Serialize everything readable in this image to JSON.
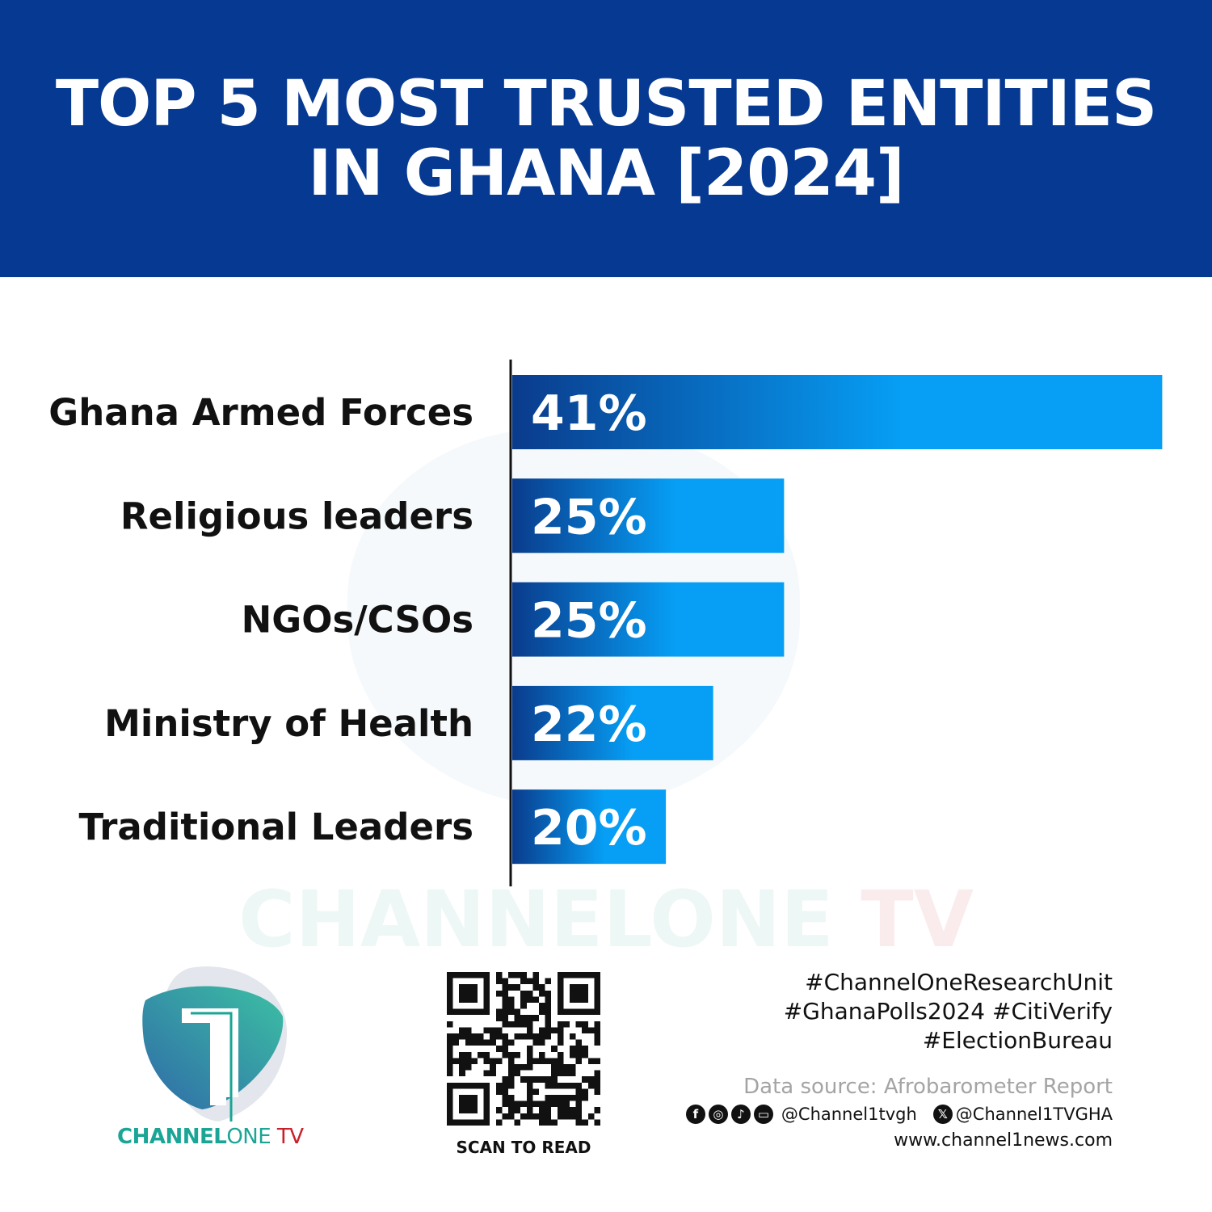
{
  "header": {
    "title_line1": "TOP 5 MOST TRUSTED ENTITIES",
    "title_line2": "IN GHANA [2024]"
  },
  "chart_data": {
    "type": "bar",
    "orientation": "horizontal",
    "title": "TOP 5 MOST TRUSTED ENTITIES IN GHANA [2024]",
    "categories": [
      "Ghana Armed Forces",
      "Religious leaders",
      "NGOs/CSOs",
      "Ministry of Health",
      "Traditional Leaders"
    ],
    "values": [
      41,
      25,
      25,
      22,
      20
    ],
    "value_labels": [
      "41%",
      "25%",
      "25%",
      "22%",
      "20%"
    ],
    "unit": "%",
    "grid": false,
    "bar_gradient": [
      "#0a3b8c",
      "#069ff5"
    ]
  },
  "watermark": {
    "part1": "CHANNELONE",
    "part2": " TV"
  },
  "logo": {
    "part1": "CHANNEL",
    "part2": "ONE",
    "part3": " TV"
  },
  "qr": {
    "caption": "SCAN TO READ"
  },
  "footer": {
    "tags": [
      "#ChannelOneResearchUnit",
      "#GhanaPolls2024 #CitiVerify",
      "#ElectionBureau"
    ],
    "source": "Data source: Afrobarometer Report",
    "social_icons": [
      "facebook-icon",
      "instagram-icon",
      "tiktok-icon",
      "youtube-icon",
      "x-icon"
    ],
    "handle1": "@Channel1tvgh",
    "handle2": "@Channel1TVGHA",
    "website": "www.channel1news.com"
  },
  "colors": {
    "header": "#063992",
    "teal": "#1aa596",
    "red": "#c8202a"
  }
}
